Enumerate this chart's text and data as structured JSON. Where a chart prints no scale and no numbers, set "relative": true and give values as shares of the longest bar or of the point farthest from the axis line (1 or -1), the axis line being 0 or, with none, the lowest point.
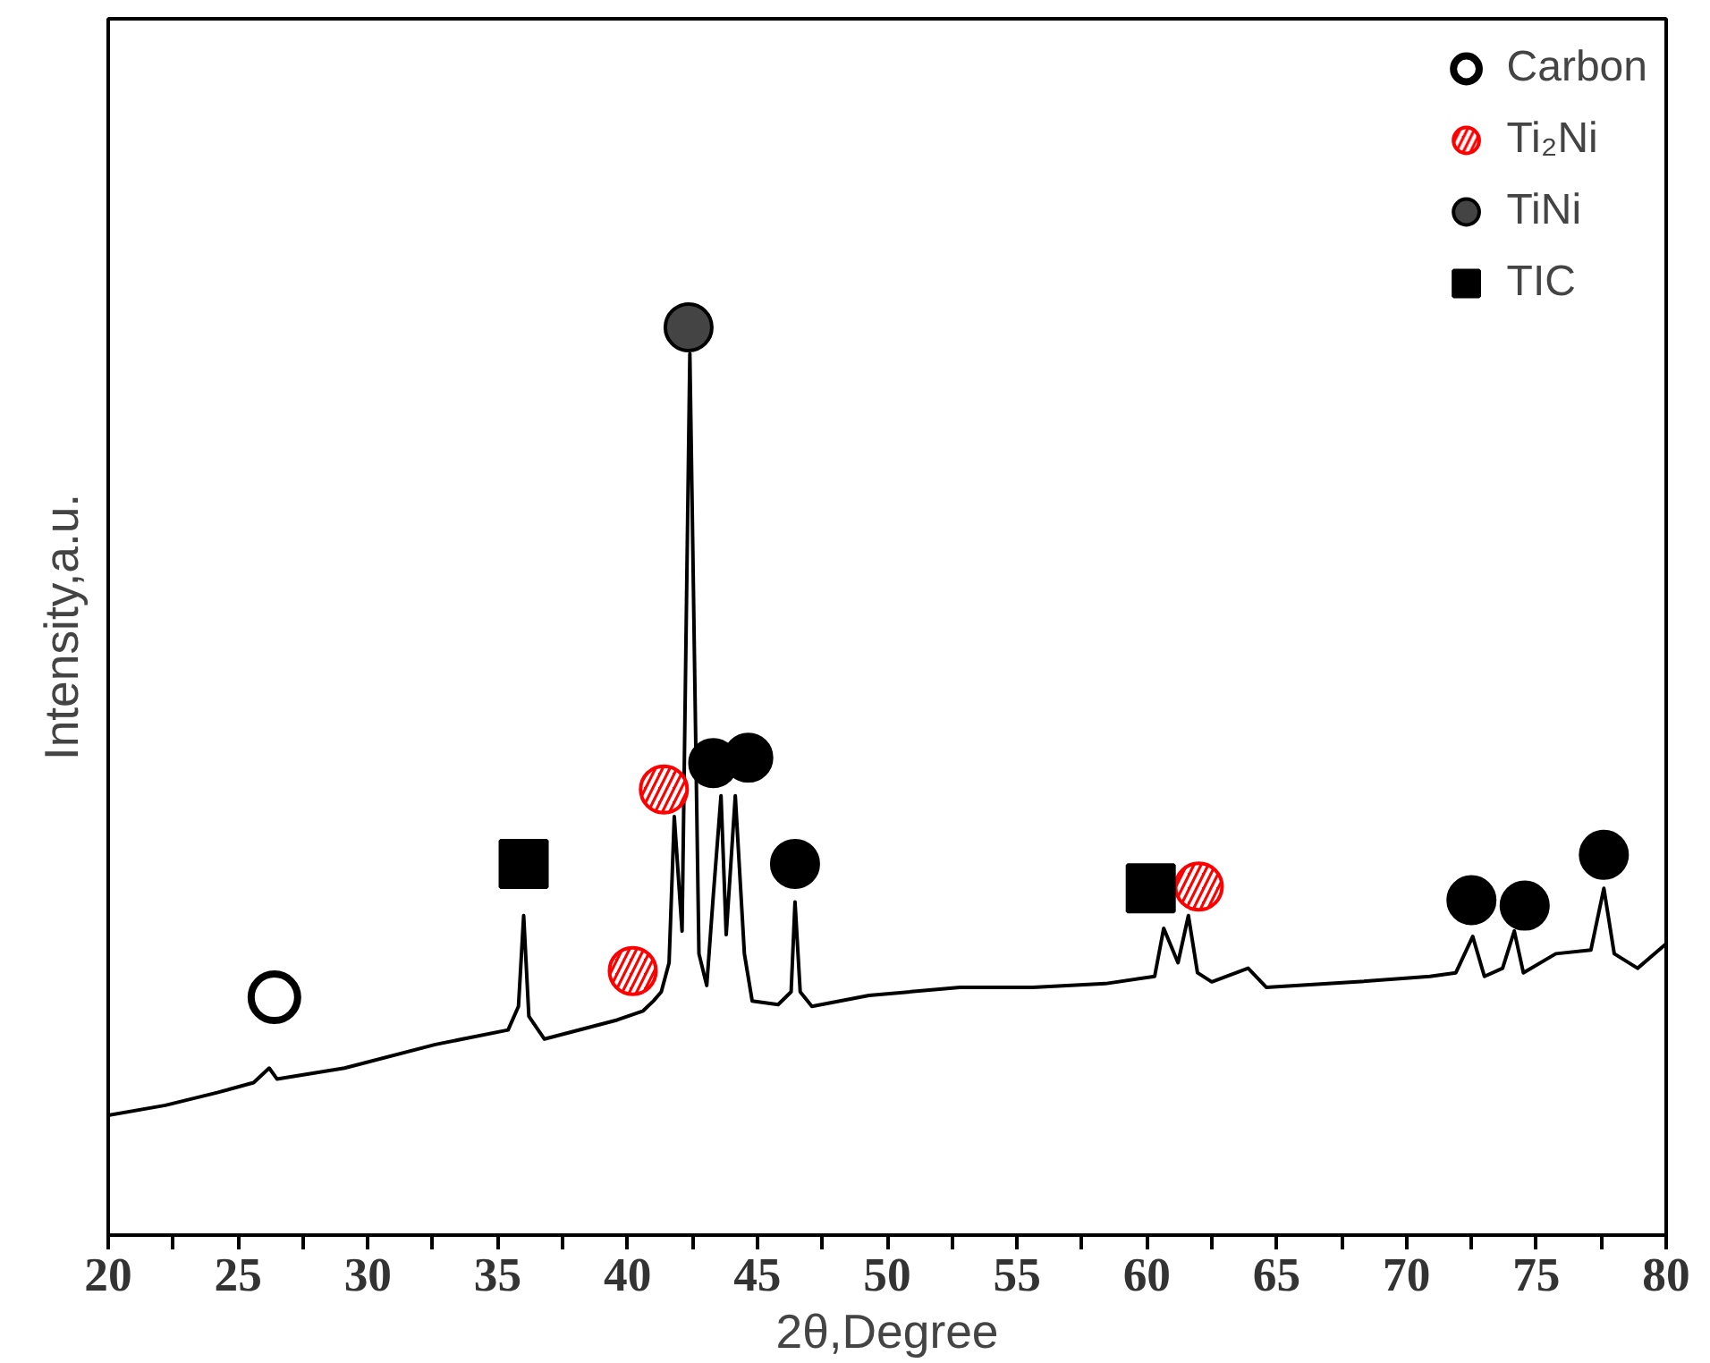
{
  "chart_data": {
    "type": "line",
    "relative": true,
    "xlabel": "2θ,Degree",
    "ylabel": "Intensity,a.u.",
    "xlim": [
      20,
      80
    ],
    "xticks": [
      20,
      {
        "value": 22.5,
        "label": null
      },
      25,
      {
        "value": 27.5,
        "label": null
      },
      30,
      {
        "value": 32.5,
        "label": null
      },
      35,
      {
        "value": 37.5,
        "label": null
      },
      40,
      {
        "value": 42.5,
        "label": null
      },
      45,
      {
        "value": 47.5,
        "label": null
      },
      50,
      {
        "value": 52.5,
        "label": null
      },
      55,
      {
        "value": 57.5,
        "label": null
      },
      60,
      {
        "value": 62.5,
        "label": null
      },
      65,
      {
        "value": 67.5,
        "label": null
      },
      70,
      {
        "value": 72.5,
        "label": null
      },
      75,
      {
        "value": 77.5,
        "label": null
      },
      80
    ],
    "grid": false,
    "legend": "top right",
    "series": [
      {
        "color": "#000000",
        "x": [
          20,
          22.2,
          24.2,
          25.6,
          26.2,
          26.5,
          29.1,
          32.6,
          35.4,
          35.8,
          36.0,
          36.2,
          36.8,
          39.6,
          40.6,
          41.0,
          41.3,
          41.6,
          41.8,
          42.1,
          42.4,
          42.75,
          43.05,
          43.3,
          43.6,
          43.8,
          44.15,
          44.5,
          44.8,
          45.8,
          46.3,
          46.45,
          46.65,
          47.1,
          49.3,
          52.8,
          55.6,
          58.4,
          60.3,
          60.65,
          61.2,
          61.6,
          61.95,
          62.5,
          63.9,
          64.6,
          68.1,
          70.9,
          71.9,
          72.55,
          73.0,
          73.7,
          74.15,
          74.5,
          75.75,
          77.1,
          77.6,
          78.0,
          78.9,
          80.0
        ],
        "values": [
          0.132,
          0.143,
          0.157,
          0.168,
          0.184,
          0.172,
          0.184,
          0.21,
          0.226,
          0.252,
          0.352,
          0.241,
          0.216,
          0.237,
          0.247,
          0.258,
          0.268,
          0.3,
          0.461,
          0.335,
          0.971,
          0.31,
          0.275,
          0.373,
          0.484,
          0.331,
          0.484,
          0.31,
          0.258,
          0.254,
          0.268,
          0.367,
          0.268,
          0.252,
          0.264,
          0.273,
          0.273,
          0.277,
          0.285,
          0.338,
          0.3,
          0.352,
          0.289,
          0.279,
          0.294,
          0.273,
          0.279,
          0.285,
          0.289,
          0.329,
          0.285,
          0.294,
          0.335,
          0.289,
          0.31,
          0.314,
          0.382,
          0.31,
          0.294,
          0.321
        ]
      },
      {
        "type": "scatter",
        "name": "Carbon",
        "marker": "circle",
        "color": "#000000",
        "x": [
          26.4
        ],
        "values": [
          0.262
        ]
      },
      {
        "type": "scatter",
        "name": "Ti₂Ni",
        "marker": "circle",
        "color": "#ff0000",
        "x": [
          40.2,
          41.4,
          62.0
        ],
        "values": [
          0.291,
          0.491,
          0.384
        ]
      },
      {
        "type": "scatter",
        "name": "TiNi",
        "marker": "circle",
        "color": "#444444",
        "colors": [
          "#444444",
          "#000000",
          "#000000",
          "#000000",
          "#000000",
          "#000000",
          "#000000"
        ],
        "x": [
          42.35,
          43.3,
          44.65,
          46.45,
          72.5,
          74.55,
          77.6
        ],
        "values": [
          1.0,
          0.52,
          0.526,
          0.409,
          0.369,
          0.363,
          0.419
        ]
      },
      {
        "type": "scatter",
        "name": "TIC",
        "marker": "square",
        "color": "#000000",
        "x": [
          36.0,
          60.15
        ],
        "values": [
          0.409,
          0.382
        ]
      }
    ]
  }
}
